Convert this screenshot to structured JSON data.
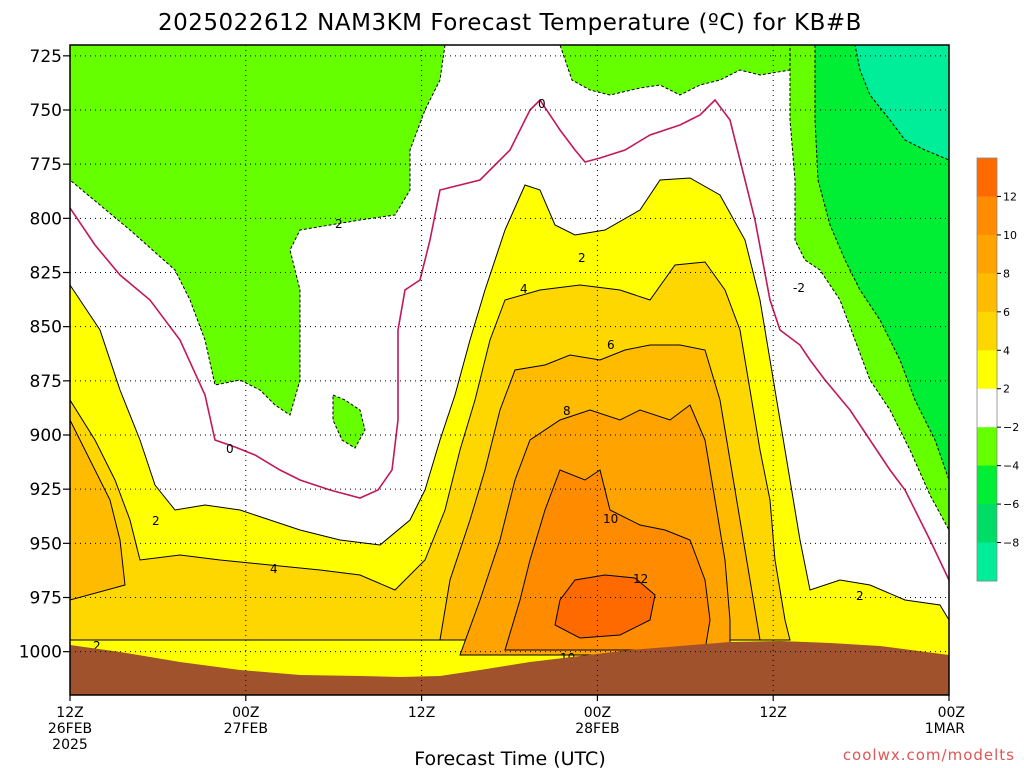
{
  "chart_data": {
    "type": "heatmap",
    "title": "2025022612 NAM3KM Forecast Temperature (ºC) for KB#B",
    "xlabel": "Forecast Time (UTC)",
    "ylabel": "",
    "y_axis": {
      "unit": "hPa",
      "inverted": true,
      "ticks": [
        725,
        750,
        775,
        800,
        825,
        850,
        875,
        900,
        925,
        950,
        975,
        1000
      ],
      "range": [
        720,
        1020
      ]
    },
    "x_axis": {
      "ticks": [
        {
          "line1": "12Z",
          "line2": "26FEB",
          "line3": "2025"
        },
        {
          "line1": "00Z",
          "line2": "27FEB",
          "line3": ""
        },
        {
          "line1": "12Z",
          "line2": "",
          "line3": ""
        },
        {
          "line1": "00Z",
          "line2": "28FEB",
          "line3": ""
        },
        {
          "line1": "12Z",
          "line2": "",
          "line3": ""
        },
        {
          "line1": "00Z",
          "line2": "1MAR",
          "line3": ""
        }
      ],
      "forecast_hours": [
        0,
        12,
        24,
        36,
        48,
        60
      ]
    },
    "grid": true,
    "colorbar": {
      "labels": [
        "12",
        "10",
        "8",
        "6",
        "4",
        "2",
        "−2",
        "−4",
        "−6",
        "−8"
      ],
      "bins": [
        {
          "lo": 12,
          "hi": 14,
          "color": "#ff6a00"
        },
        {
          "lo": 10,
          "hi": 12,
          "color": "#ff8c00"
        },
        {
          "lo": 8,
          "hi": 10,
          "color": "#ffa300"
        },
        {
          "lo": 6,
          "hi": 8,
          "color": "#ffbb00"
        },
        {
          "lo": 4,
          "hi": 6,
          "color": "#ffd700"
        },
        {
          "lo": 2,
          "hi": 4,
          "color": "#ffff00"
        },
        {
          "lo": -2,
          "hi": 2,
          "color": "#ffffff"
        },
        {
          "lo": -4,
          "hi": -2,
          "color": "#66ff00"
        },
        {
          "lo": -6,
          "hi": -4,
          "color": "#00ee33"
        },
        {
          "lo": -8,
          "hi": -6,
          "color": "#00dd66"
        },
        {
          "lo": -10,
          "hi": -8,
          "color": "#00ee99"
        }
      ]
    },
    "contour_labels": [
      {
        "text": "0",
        "hour": 39.2,
        "p": 743
      },
      {
        "text": "2",
        "hour": 22.2,
        "p": 795
      },
      {
        "text": "2",
        "hour": 34.6,
        "p": 807
      },
      {
        "text": "-2",
        "hour": 50.4,
        "p": 827
      },
      {
        "text": "4",
        "hour": 31.5,
        "p": 822
      },
      {
        "text": "6",
        "hour": 37.0,
        "p": 847
      },
      {
        "text": "8",
        "hour": 34.0,
        "p": 876
      },
      {
        "text": "0",
        "hour": 11.0,
        "p": 897
      },
      {
        "text": "2",
        "hour": 5.9,
        "p": 922
      },
      {
        "text": "4",
        "hour": 14.1,
        "p": 955
      },
      {
        "text": "10",
        "hour": 37.1,
        "p": 924
      },
      {
        "text": "12",
        "hour": 39.2,
        "p": 972
      },
      {
        "text": "10",
        "hour": 34.1,
        "p": 1004
      },
      {
        "text": "2",
        "hour": 2.0,
        "p": 997
      },
      {
        "text": "2",
        "hour": 54.1,
        "p": 980
      }
    ],
    "series": [
      {
        "name": "",
        "temperature_c_by_level": {
          "hours": [
            0,
            6,
            12,
            18,
            24,
            30,
            33,
            36,
            39,
            42,
            45,
            48,
            54,
            60
          ],
          "p725": [
            -3,
            -3,
            -3,
            -2,
            -1,
            0,
            1,
            0,
            -1,
            -2,
            -3,
            -4,
            -5,
            -7
          ],
          "p800": [
            1,
            -1,
            -3,
            -2,
            0,
            3,
            3,
            2,
            3,
            3,
            2,
            0,
            -3,
            -5
          ],
          "p850": [
            3,
            0,
            -2,
            -3,
            0,
            5,
            6,
            6,
            6,
            7,
            5,
            3,
            -1,
            -4
          ],
          "p900": [
            4,
            2,
            0,
            0,
            1,
            6,
            8,
            9,
            9,
            9,
            7,
            4,
            0,
            -3
          ],
          "p950": [
            5,
            2,
            3,
            3,
            2,
            6,
            10,
            11,
            11,
            10,
            7,
            3,
            1,
            0
          ],
          "p975": [
            3,
            3,
            5,
            4,
            4,
            7,
            11,
            13,
            13,
            11,
            6,
            3,
            2,
            2
          ],
          "p1000": [
            2,
            3,
            4,
            3,
            3,
            7,
            10,
            11,
            11,
            9,
            5,
            3,
            3,
            3
          ]
        }
      }
    ],
    "terrain_color": "#a0522d"
  },
  "credit": "coolwx.com/modelts"
}
